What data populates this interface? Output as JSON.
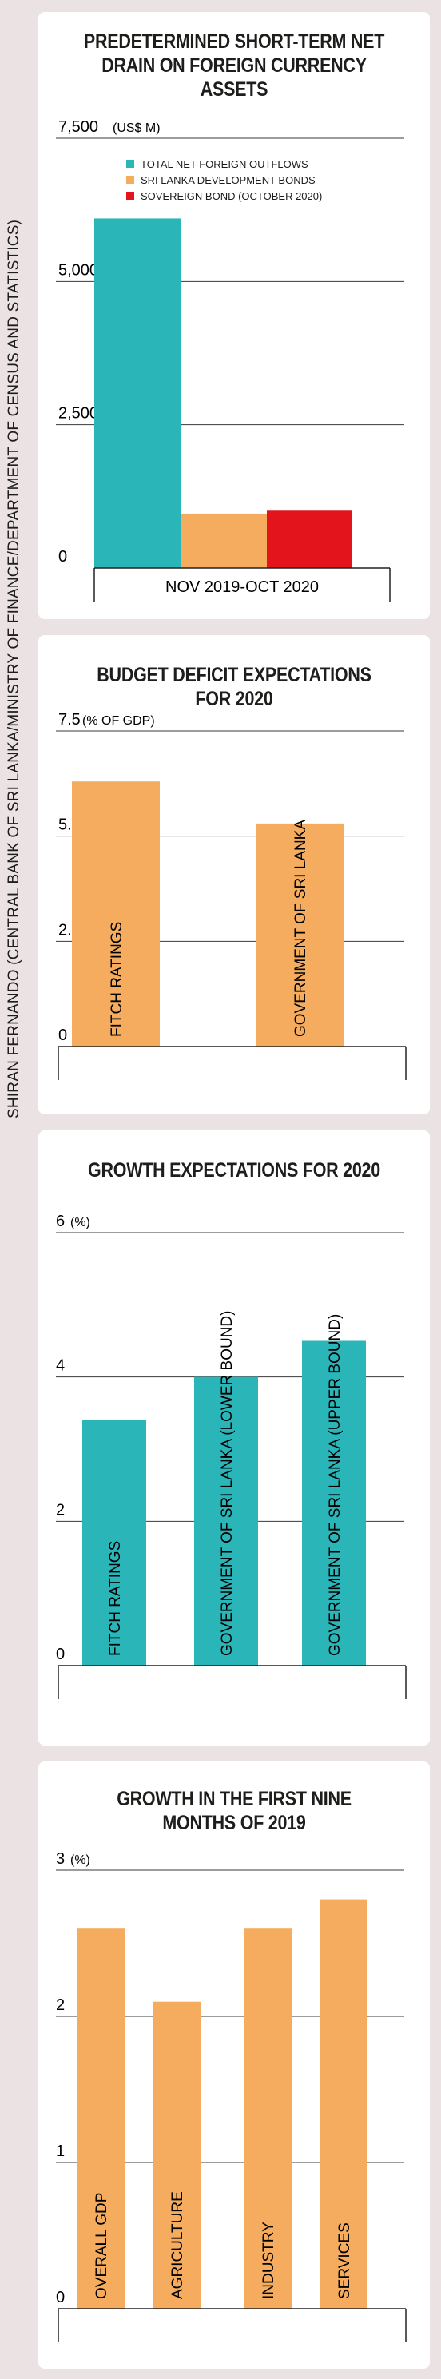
{
  "credit": "SHIRAN FERNANDO (CENTRAL BANK OF SRI LANKA/MINISTRY OF FINANCE/DEPARTMENT OF CENSUS AND STATISTICS)",
  "colors": {
    "teal": "#2ab6b9",
    "orange": "#f5ac5e",
    "red": "#e3141b",
    "gridline": "#3a3a3a"
  },
  "chart_data": [
    {
      "type": "bar",
      "title": "PREDETERMINED SHORT-TERM NET DRAIN ON FOREIGN CURRENCY ASSETS",
      "unit_label": "(US$ M)",
      "ylim": [
        0,
        7500
      ],
      "yticks": [
        0,
        2500,
        5000,
        7500
      ],
      "ytick_labels": [
        "0",
        "2,500",
        "5,000",
        "7,500"
      ],
      "categories": [
        "NOV 2019-OCT 2020"
      ],
      "series": [
        {
          "name": "TOTAL NET FOREIGN OUTFLOWS",
          "color": "#2ab6b9",
          "values": [
            6100
          ]
        },
        {
          "name": "SRI LANKA DEVELOPMENT BONDS",
          "color": "#f5ac5e",
          "values": [
            950
          ]
        },
        {
          "name": "SOVEREIGN BOND (OCTOBER 2020)",
          "color": "#e3141b",
          "values": [
            1000
          ]
        }
      ]
    },
    {
      "type": "bar",
      "title": "BUDGET DEFICIT EXPECTATIONS FOR 2020",
      "unit_label": "(% OF GDP)",
      "ylim": [
        0,
        7.5
      ],
      "yticks": [
        0,
        2.5,
        5.0,
        7.5
      ],
      "ytick_labels": [
        "0",
        "2.5",
        "5.0",
        "7.5"
      ],
      "color": "#f5ac5e",
      "categories": [
        "FITCH RATINGS",
        "GOVERNMENT OF SRI LANKA"
      ],
      "values": [
        6.3,
        5.3
      ]
    },
    {
      "type": "bar",
      "title": "GROWTH EXPECTATIONS FOR 2020",
      "unit_label": "(%)",
      "ylim": [
        0,
        6
      ],
      "yticks": [
        0,
        2,
        4,
        6
      ],
      "ytick_labels": [
        "0",
        "2",
        "4",
        "6"
      ],
      "color": "#2ab6b9",
      "categories": [
        "FITCH RATINGS",
        "GOVERNMENT OF SRI LANKA (LOWER BOUND)",
        "GOVERNMENT OF SRI LANKA (UPPER BOUND)"
      ],
      "values": [
        3.4,
        4.0,
        4.5
      ]
    },
    {
      "type": "bar",
      "title": "GROWTH IN THE FIRST NINE MONTHS OF 2019",
      "unit_label": "(%)",
      "ylim": [
        0,
        3
      ],
      "yticks": [
        0,
        1,
        2,
        3
      ],
      "ytick_labels": [
        "0",
        "1",
        "2",
        "3"
      ],
      "color": "#f5ac5e",
      "categories": [
        "OVERALL GDP",
        "AGRICULTURE",
        "INDUSTRY",
        "SERVICES"
      ],
      "values": [
        2.6,
        2.1,
        2.6,
        2.8
      ]
    }
  ]
}
